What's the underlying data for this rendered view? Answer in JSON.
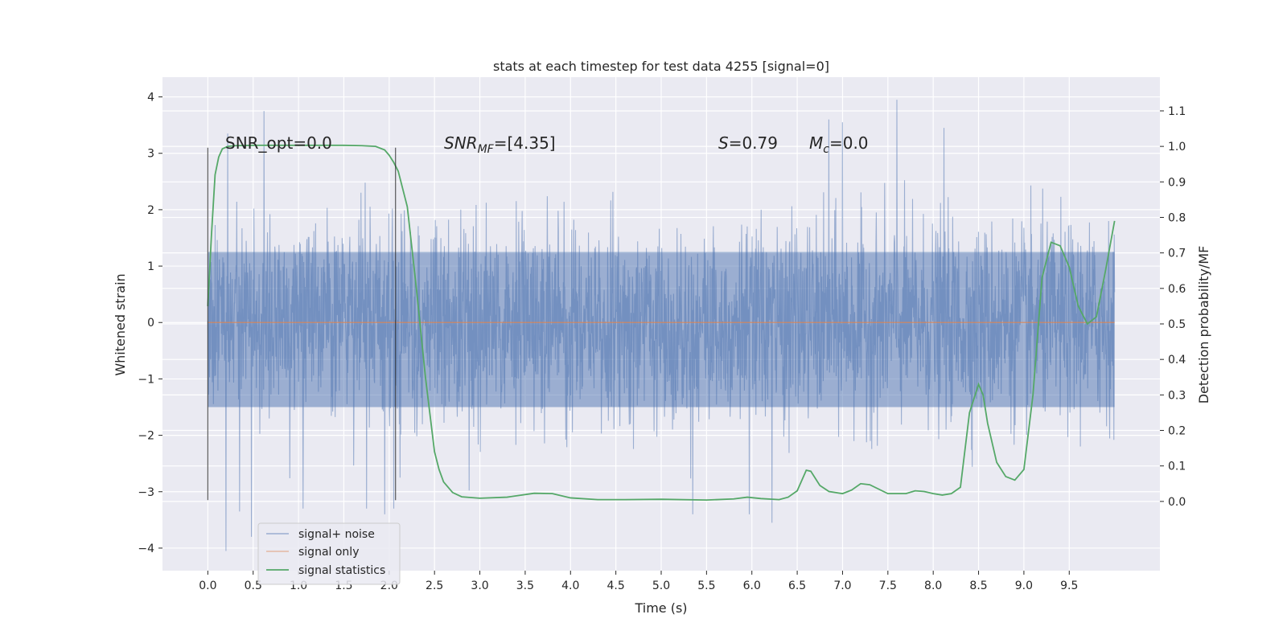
{
  "chart_data": {
    "type": "line",
    "title": "stats at each timestep for test data 4255 [signal=0]",
    "xlabel": "Time (s)",
    "ylabel": "Whitened strain",
    "y2label": "Detection probability/MF",
    "xlim": [
      -0.5,
      10.5
    ],
    "ylim": [
      -4.4,
      4.35
    ],
    "y2lim": [
      -0.195,
      1.195
    ],
    "x_ticks": [
      "0.0",
      "0.5",
      "1.0",
      "1.5",
      "2.0",
      "2.5",
      "3.0",
      "3.5",
      "4.0",
      "4.5",
      "5.0",
      "5.5",
      "6.0",
      "6.5",
      "7.0",
      "7.5",
      "8.0",
      "8.5",
      "9.0",
      "9.5"
    ],
    "y_ticks": [
      "4",
      "3",
      "2",
      "1",
      "0",
      "−1",
      "−2",
      "−3",
      "−4"
    ],
    "y2_ticks": [
      "1.1",
      "1.0",
      "0.9",
      "0.8",
      "0.7",
      "0.6",
      "0.5",
      "0.4",
      "0.3",
      "0.2",
      "0.1",
      "0.0"
    ],
    "grid": true,
    "legend_position": "bottom-left",
    "annotations": {
      "snr_opt": "SNR_opt=0.0",
      "snr_mf_sym": "SNR",
      "snr_mf_sub": "MF",
      "snr_mf_val": "=[4.35]",
      "s_sym": "S",
      "s_val": "=0.79",
      "mc_sym": "M",
      "mc_sub": "c",
      "mc_val": "=0.0"
    },
    "vertical_lines": [
      {
        "x": 0.0,
        "ymin": -3.15,
        "ymax": 3.1
      },
      {
        "x": 2.07,
        "ymin": -3.15,
        "ymax": 3.1
      }
    ],
    "series": [
      {
        "name": "signal+ noise",
        "axis": "left",
        "color": "#4c72b0",
        "style": "noise",
        "x_range": [
          0.0,
          10.0
        ],
        "band": [
          -1.5,
          1.25
        ],
        "extremes": [
          [
            0.22,
            3.35
          ],
          [
            0.2,
            -4.05
          ],
          [
            0.62,
            3.75
          ],
          [
            0.35,
            -3.35
          ],
          [
            0.48,
            -3.8
          ],
          [
            1.05,
            -3.3
          ],
          [
            1.75,
            -3.3
          ],
          [
            1.95,
            -3.4
          ],
          [
            2.05,
            -3.3
          ],
          [
            5.35,
            -3.4
          ],
          [
            5.97,
            -3.4
          ],
          [
            6.22,
            -3.55
          ],
          [
            7.6,
            3.95
          ],
          [
            6.85,
            3.6
          ],
          [
            7.0,
            3.55
          ],
          [
            8.12,
            3.45
          ],
          [
            2.12,
            -2.75
          ]
        ]
      },
      {
        "name": "signal only",
        "axis": "left",
        "color": "#dd8452",
        "x": [
          0.0,
          10.0
        ],
        "values": [
          0.0,
          0.0
        ]
      },
      {
        "name": "signal statistics",
        "axis": "right",
        "color": "#55a868",
        "x": [
          0.0,
          0.04,
          0.08,
          0.12,
          0.16,
          0.22,
          0.3,
          0.5,
          1.0,
          1.5,
          1.7,
          1.85,
          1.95,
          2.0,
          2.05,
          2.1,
          2.2,
          2.3,
          2.4,
          2.5,
          2.55,
          2.6,
          2.7,
          2.8,
          3.0,
          3.3,
          3.6,
          3.8,
          4.0,
          4.3,
          4.6,
          5.0,
          5.5,
          5.8,
          5.95,
          6.1,
          6.3,
          6.4,
          6.5,
          6.6,
          6.65,
          6.75,
          6.85,
          7.0,
          7.1,
          7.2,
          7.3,
          7.5,
          7.7,
          7.8,
          7.9,
          8.0,
          8.1,
          8.2,
          8.3,
          8.4,
          8.5,
          8.55,
          8.6,
          8.7,
          8.8,
          8.9,
          9.0,
          9.1,
          9.2,
          9.3,
          9.4,
          9.5,
          9.6,
          9.7,
          9.8,
          9.9,
          10.0
        ],
        "values": [
          0.55,
          0.75,
          0.92,
          0.97,
          0.993,
          1.0,
          1.002,
          1.003,
          1.003,
          1.003,
          1.002,
          1.0,
          0.99,
          0.975,
          0.955,
          0.93,
          0.83,
          0.6,
          0.35,
          0.14,
          0.09,
          0.055,
          0.025,
          0.013,
          0.009,
          0.012,
          0.023,
          0.022,
          0.01,
          0.005,
          0.005,
          0.006,
          0.004,
          0.007,
          0.012,
          0.008,
          0.005,
          0.012,
          0.03,
          0.088,
          0.085,
          0.045,
          0.028,
          0.022,
          0.032,
          0.05,
          0.047,
          0.022,
          0.022,
          0.03,
          0.028,
          0.022,
          0.018,
          0.022,
          0.04,
          0.25,
          0.33,
          0.3,
          0.22,
          0.11,
          0.07,
          0.06,
          0.09,
          0.3,
          0.63,
          0.73,
          0.72,
          0.66,
          0.55,
          0.5,
          0.52,
          0.65,
          0.79
        ]
      }
    ]
  }
}
